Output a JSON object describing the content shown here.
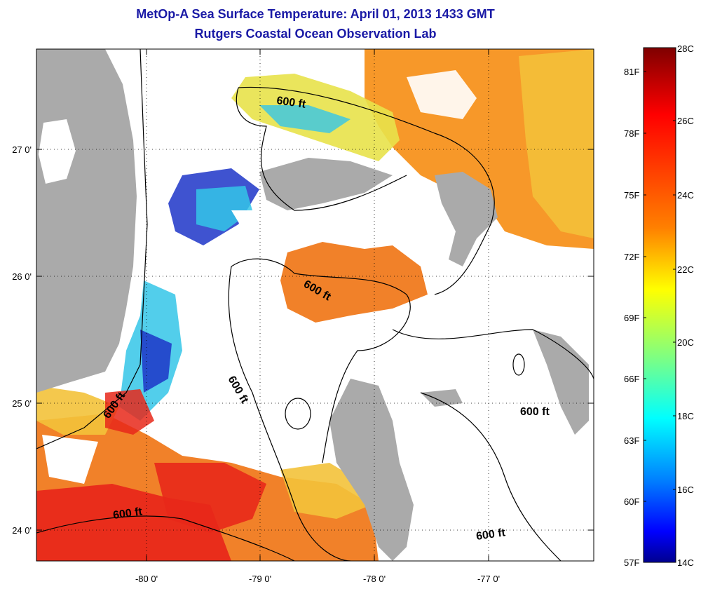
{
  "title": "MetOp-A Sea Surface Temperature:  April 01, 2013 1433 GMT",
  "subtitle": "Rutgers Coastal Ocean Observation Lab",
  "axes": {
    "x_ticks": [
      "-80 0'",
      "-79 0'",
      "-78 0'",
      "-77 0'"
    ],
    "y_ticks": [
      "27 0'",
      "26 0'",
      "25 0'",
      "24 0'"
    ]
  },
  "contour_label": "600 ft",
  "colorbar": {
    "celsius": [
      "28C",
      "26C",
      "24C",
      "22C",
      "20C",
      "18C",
      "16C",
      "14C"
    ],
    "fahrenheit": [
      "81F",
      "78F",
      "75F",
      "72F",
      "69F",
      "66F",
      "63F",
      "60F",
      "57F"
    ],
    "colors": [
      "#7f0000",
      "#ff0000",
      "#ff8000",
      "#ffff00",
      "#80ff80",
      "#00ffff",
      "#0080ff",
      "#0000ff",
      "#00008f"
    ]
  },
  "colors": {
    "land": "#aaaaaa",
    "title": "#1a1aa6",
    "warm": "#f05a14",
    "orange": "#f7921e",
    "yellow": "#f3e43a",
    "cyan": "#34c6e8",
    "blue": "#1d35c8"
  }
}
